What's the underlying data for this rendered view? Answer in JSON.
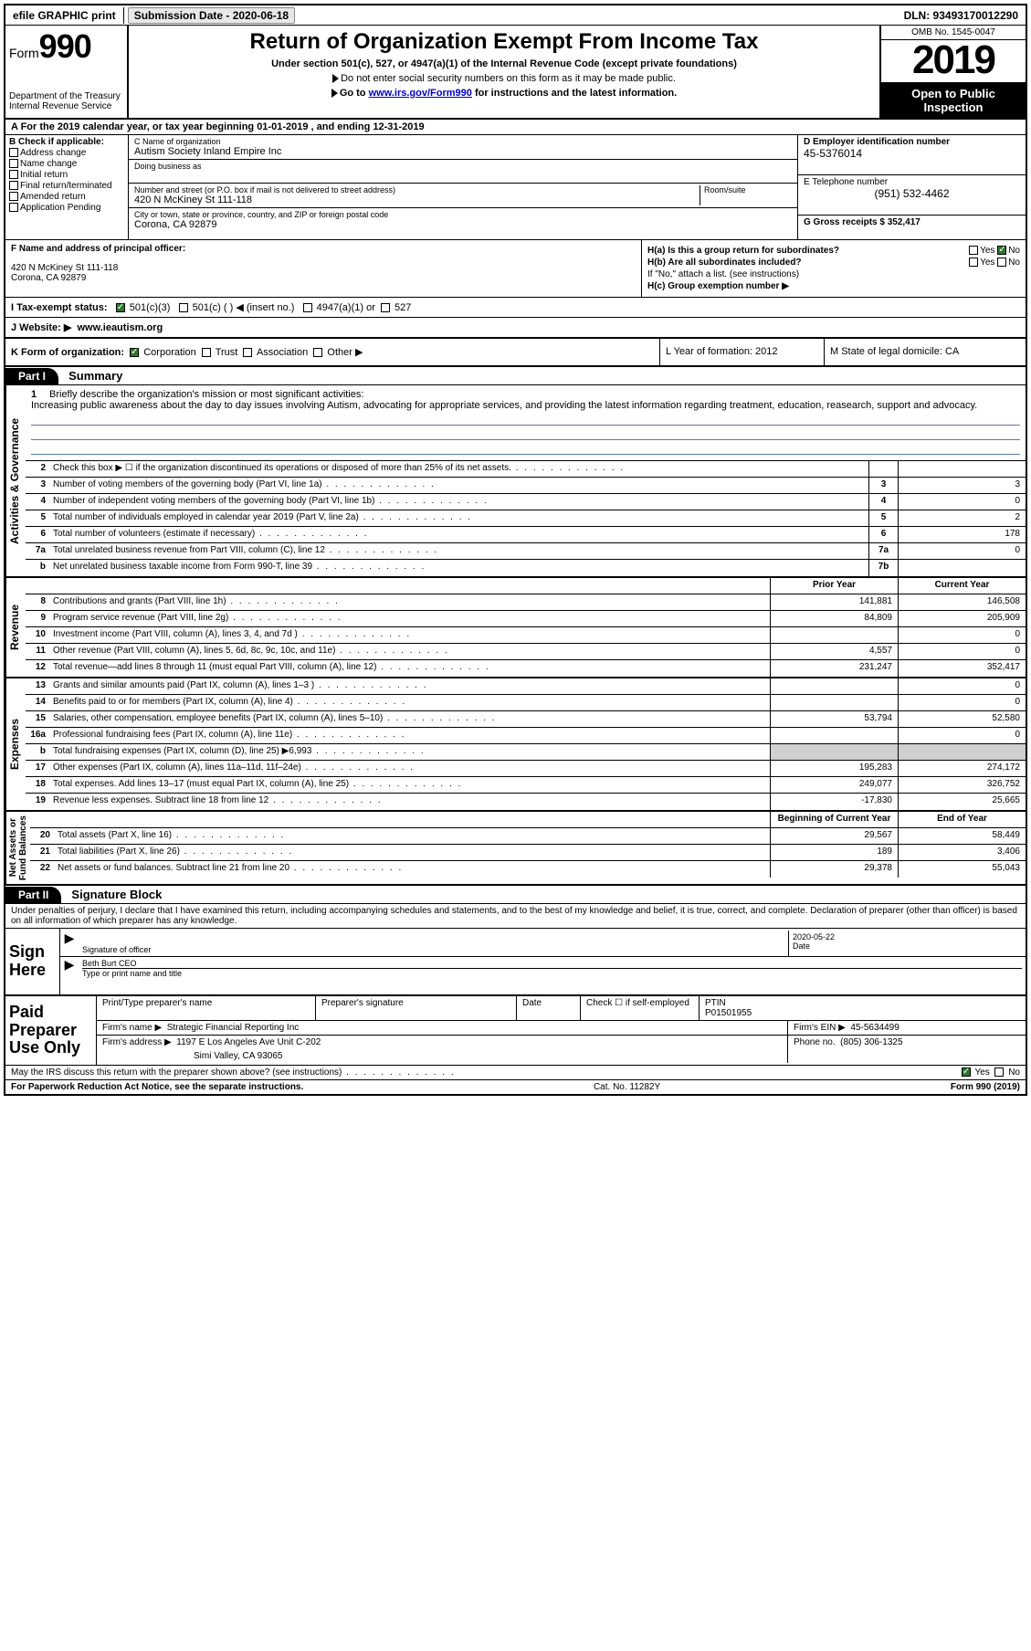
{
  "topbar": {
    "efile_label": "efile GRAPHIC print",
    "submission_label": "Submission Date - 2020-06-18",
    "dln_label": "DLN: 93493170012290"
  },
  "header": {
    "form_word": "Form",
    "form_num": "990",
    "dept": "Department of the Treasury\nInternal Revenue Service",
    "title": "Return of Organization Exempt From Income Tax",
    "sub1": "Under section 501(c), 527, or 4947(a)(1) of the Internal Revenue Code (except private foundations)",
    "sub2": "Do not enter social security numbers on this form as it may be made public.",
    "sub3_pre": "Go to ",
    "sub3_link": "www.irs.gov/Form990",
    "sub3_post": " for instructions and the latest information.",
    "omb": "OMB No. 1545-0047",
    "year": "2019",
    "open": "Open to Public Inspection"
  },
  "row_a": "A   For the 2019 calendar year, or tax year beginning 01-01-2019   , and ending 12-31-2019",
  "col_b": {
    "label": "B Check if applicable:",
    "opts": [
      "Address change",
      "Name change",
      "Initial return",
      "Final return/terminated",
      "Amended return",
      "Application Pending"
    ]
  },
  "col_c": {
    "name_lbl": "C Name of organization",
    "name_val": "Autism Society Inland Empire Inc",
    "dba_lbl": "Doing business as",
    "dba_val": "",
    "addr_lbl": "Number and street (or P.O. box if mail is not delivered to street address)",
    "addr_val": "420 N McKiney St 111-118",
    "room_lbl": "Room/suite",
    "city_lbl": "City or town, state or province, country, and ZIP or foreign postal code",
    "city_val": "Corona, CA  92879"
  },
  "col_d": {
    "ein_lbl": "D Employer identification number",
    "ein_val": "45-5376014",
    "tel_lbl": "E Telephone number",
    "tel_val": "(951) 532-4462",
    "gross_lbl": "G Gross receipts $ 352,417"
  },
  "section_f": {
    "f_lbl": "F  Name and address of principal officer:",
    "f_addr1": "420 N McKiney St 111-118",
    "f_addr2": "Corona, CA  92879",
    "h_a": "H(a)  Is this a group return for subordinates?",
    "h_b": "H(b)  Are all subordinates included?",
    "h_note": "If \"No,\" attach a list. (see instructions)",
    "h_c": "H(c)  Group exemption number ▶",
    "yes": "Yes",
    "no": "No"
  },
  "status": {
    "i_lbl": "I    Tax-exempt status:",
    "o1": "501(c)(3)",
    "o2": "501(c) (    ) ◀ (insert no.)",
    "o3": "4947(a)(1) or",
    "o4": "527"
  },
  "website": {
    "j_lbl": "J   Website: ▶",
    "val": "www.ieautism.org"
  },
  "k_row": {
    "k_lbl": "K Form of organization:",
    "o1": "Corporation",
    "o2": "Trust",
    "o3": "Association",
    "o4": "Other ▶",
    "l_lbl": "L Year of formation: 2012",
    "m_lbl": "M State of legal domicile: CA"
  },
  "parts": {
    "part1": "Part I",
    "summary": "Summary",
    "part2": "Part II",
    "sig": "Signature Block"
  },
  "vtabs": {
    "gov": "Activities & Governance",
    "rev": "Revenue",
    "exp": "Expenses",
    "net": "Net Assets or\nFund Balances"
  },
  "mission": {
    "num": "1",
    "lbl": "Briefly describe the organization's mission or most significant activities:",
    "text": "Increasing public awareness about the day to day issues involving Autism, advocating for appropriate services, and providing the latest information regarding treatment, education, reasearch, support and advocacy."
  },
  "gov_lines": [
    {
      "n": "2",
      "t": "Check this box ▶ ☐  if the organization discontinued its operations or disposed of more than 25% of its net assets.",
      "box": "",
      "v": ""
    },
    {
      "n": "3",
      "t": "Number of voting members of the governing body (Part VI, line 1a)",
      "box": "3",
      "v": "3"
    },
    {
      "n": "4",
      "t": "Number of independent voting members of the governing body (Part VI, line 1b)",
      "box": "4",
      "v": "0"
    },
    {
      "n": "5",
      "t": "Total number of individuals employed in calendar year 2019 (Part V, line 2a)",
      "box": "5",
      "v": "2"
    },
    {
      "n": "6",
      "t": "Total number of volunteers (estimate if necessary)",
      "box": "6",
      "v": "178"
    },
    {
      "n": "7a",
      "t": "Total unrelated business revenue from Part VIII, column (C), line 12",
      "box": "7a",
      "v": "0"
    },
    {
      "n": "b",
      "t": "Net unrelated business taxable income from Form 990-T, line 39",
      "box": "7b",
      "v": ""
    }
  ],
  "col_hdrs": {
    "prior": "Prior Year",
    "current": "Current Year"
  },
  "rev_lines": [
    {
      "n": "8",
      "t": "Contributions and grants (Part VIII, line 1h)",
      "p": "141,881",
      "c": "146,508"
    },
    {
      "n": "9",
      "t": "Program service revenue (Part VIII, line 2g)",
      "p": "84,809",
      "c": "205,909"
    },
    {
      "n": "10",
      "t": "Investment income (Part VIII, column (A), lines 3, 4, and 7d )",
      "p": "",
      "c": "0"
    },
    {
      "n": "11",
      "t": "Other revenue (Part VIII, column (A), lines 5, 6d, 8c, 9c, 10c, and 11e)",
      "p": "4,557",
      "c": "0"
    },
    {
      "n": "12",
      "t": "Total revenue—add lines 8 through 11 (must equal Part VIII, column (A), line 12)",
      "p": "231,247",
      "c": "352,417"
    }
  ],
  "exp_lines": [
    {
      "n": "13",
      "t": "Grants and similar amounts paid (Part IX, column (A), lines 1–3 )",
      "p": "",
      "c": "0"
    },
    {
      "n": "14",
      "t": "Benefits paid to or for members (Part IX, column (A), line 4)",
      "p": "",
      "c": "0"
    },
    {
      "n": "15",
      "t": "Salaries, other compensation, employee benefits (Part IX, column (A), lines 5–10)",
      "p": "53,794",
      "c": "52,580"
    },
    {
      "n": "16a",
      "t": "Professional fundraising fees (Part IX, column (A), line 11e)",
      "p": "",
      "c": "0"
    },
    {
      "n": "b",
      "t": "Total fundraising expenses (Part IX, column (D), line 25) ▶6,993",
      "p": "shade",
      "c": "shade"
    },
    {
      "n": "17",
      "t": "Other expenses (Part IX, column (A), lines 11a–11d, 11f–24e)",
      "p": "195,283",
      "c": "274,172"
    },
    {
      "n": "18",
      "t": "Total expenses. Add lines 13–17 (must equal Part IX, column (A), line 25)",
      "p": "249,077",
      "c": "326,752"
    },
    {
      "n": "19",
      "t": "Revenue less expenses. Subtract line 18 from line 12",
      "p": "-17,830",
      "c": "25,665"
    }
  ],
  "net_hdrs": {
    "begin": "Beginning of Current Year",
    "end": "End of Year"
  },
  "net_lines": [
    {
      "n": "20",
      "t": "Total assets (Part X, line 16)",
      "p": "29,567",
      "c": "58,449"
    },
    {
      "n": "21",
      "t": "Total liabilities (Part X, line 26)",
      "p": "189",
      "c": "3,406"
    },
    {
      "n": "22",
      "t": "Net assets or fund balances. Subtract line 21 from line 20",
      "p": "29,378",
      "c": "55,043"
    }
  ],
  "sig": {
    "intro": "Under penalties of perjury, I declare that I have examined this return, including accompanying schedules and statements, and to the best of my knowledge and belief, it is true, correct, and complete. Declaration of preparer (other than officer) is based on all information of which preparer has any knowledge.",
    "sign_here": "Sign Here",
    "sig_officer_lbl": "Signature of officer",
    "date_lbl": "Date",
    "date_val": "2020-05-22",
    "name_val": "Beth Burt CEO",
    "name_lbl": "Type or print name and title"
  },
  "paid": {
    "lbl": "Paid Preparer Use Only",
    "prep_name_lbl": "Print/Type preparer's name",
    "prep_sig_lbl": "Preparer's signature",
    "date_lbl": "Date",
    "check_lbl": "Check ☐ if self-employed",
    "ptin_lbl": "PTIN",
    "ptin_val": "P01501955",
    "firm_name_lbl": "Firm's name   ▶",
    "firm_name_val": "Strategic Financial Reporting Inc",
    "firm_ein_lbl": "Firm's EIN ▶",
    "firm_ein_val": "45-5634499",
    "firm_addr_lbl": "Firm's address ▶",
    "firm_addr_val": "1197 E Los Angeles Ave Unit C-202",
    "firm_city": "Simi Valley, CA  93065",
    "phone_lbl": "Phone no.",
    "phone_val": "(805) 306-1325"
  },
  "discuss": {
    "q": "May the IRS discuss this return with the preparer shown above? (see instructions)",
    "yes": "Yes",
    "no": "No"
  },
  "footer": {
    "left": "For Paperwork Reduction Act Notice, see the separate instructions.",
    "mid": "Cat. No. 11282Y",
    "right": "Form 990 (2019)"
  }
}
